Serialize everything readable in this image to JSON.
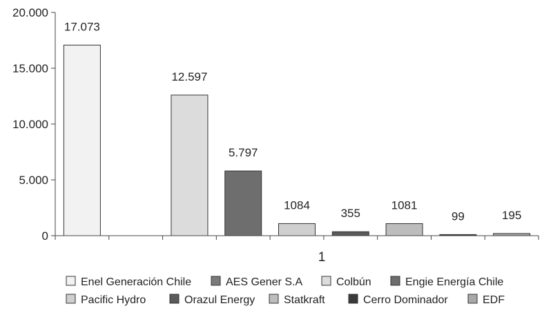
{
  "chart_data": {
    "type": "bar",
    "title": "",
    "xlabel": "",
    "ylabel": "",
    "categories": [
      "1"
    ],
    "ylim": [
      0,
      20000
    ],
    "yticks": [
      0,
      5000,
      10000,
      15000,
      20000
    ],
    "ytick_labels": [
      "0",
      "5.000",
      "10.000",
      "15.000",
      "20.000"
    ],
    "grid": false,
    "legend_position": "bottom",
    "series": [
      {
        "name": "Enel Generación Chile",
        "values": [
          17073
        ],
        "label": "17.073",
        "color": "#f2f2f2"
      },
      {
        "name": "AES Gener S.A",
        "values": [
          0
        ],
        "label": "",
        "color": "#7a7a7a"
      },
      {
        "name": "Colbún",
        "values": [
          12597
        ],
        "label": "12.597",
        "color": "#dcdcdc"
      },
      {
        "name": "Engie Energía Chile",
        "values": [
          5797
        ],
        "label": "5.797",
        "color": "#6e6e6e"
      },
      {
        "name": "Pacific Hydro",
        "values": [
          1084
        ],
        "label": "1084",
        "color": "#cfcfcf"
      },
      {
        "name": "Orazul Energy",
        "values": [
          355
        ],
        "label": "355",
        "color": "#5a5a5a"
      },
      {
        "name": "Statkraft",
        "values": [
          1081
        ],
        "label": "1081",
        "color": "#bdbdbd"
      },
      {
        "name": "Cerro Dominador",
        "values": [
          99
        ],
        "label": "99",
        "color": "#3a3a3a"
      },
      {
        "name": "EDF",
        "values": [
          195
        ],
        "label": "195",
        "color": "#a8a8a8"
      }
    ]
  }
}
